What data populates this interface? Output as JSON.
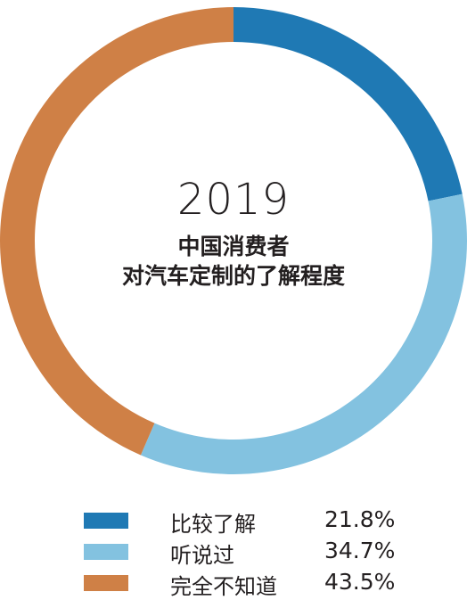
{
  "chart_data": {
    "type": "pie",
    "variant": "donut",
    "title_year": "2019",
    "title_lines": [
      "中国消费者",
      "对汽车定制的了解程度"
    ],
    "slices": [
      {
        "label": "比较了解",
        "value": 21.8,
        "value_label": "21.8%",
        "color": "#1f79b4"
      },
      {
        "label": "听说过",
        "value": 34.7,
        "value_label": "34.7%",
        "color": "#83c2e0"
      },
      {
        "label": "完全不知道",
        "value": 43.5,
        "value_label": "43.5%",
        "color": "#cf8046"
      }
    ],
    "legend_placement": "bottom"
  }
}
